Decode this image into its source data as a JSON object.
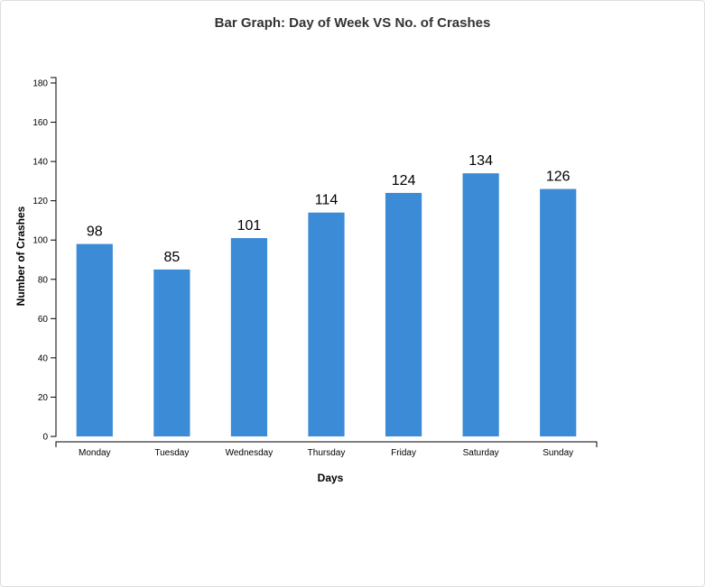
{
  "chart_data": {
    "type": "bar",
    "title": "Bar Graph: Day of Week VS No. of Crashes",
    "xlabel": "Days",
    "ylabel": "Number of Crashes",
    "categories": [
      "Monday",
      "Tuesday",
      "Wednesday",
      "Thursday",
      "Friday",
      "Saturday",
      "Sunday"
    ],
    "values": [
      98,
      85,
      101,
      114,
      124,
      134,
      126
    ],
    "ylim": [
      0,
      180
    ],
    "yticks": [
      0,
      20,
      40,
      60,
      80,
      100,
      120,
      140,
      160,
      180
    ],
    "grid": false,
    "legend": "none",
    "bar_color": "#3b8bd6"
  }
}
